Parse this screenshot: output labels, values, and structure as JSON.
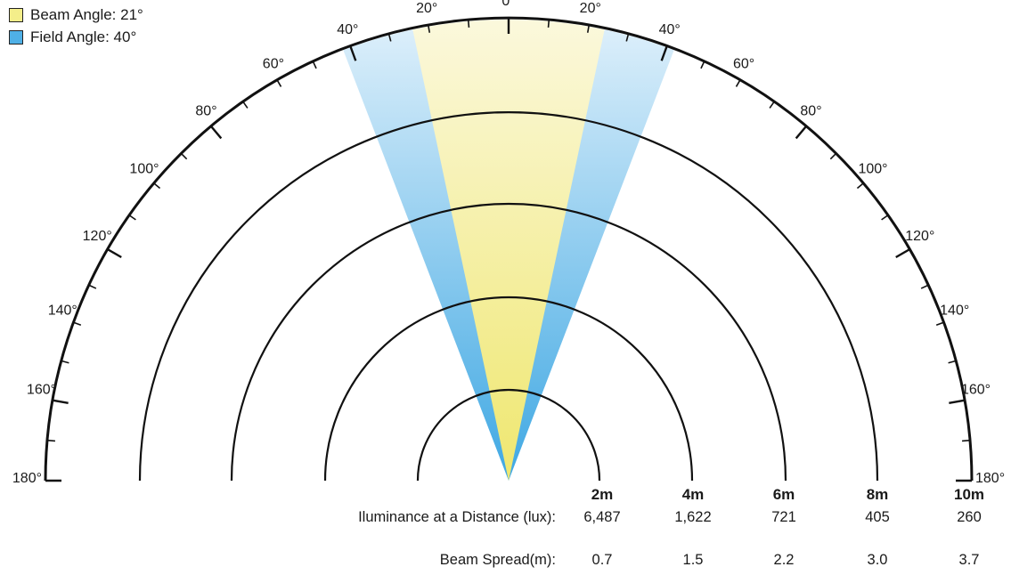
{
  "legend": {
    "beam": {
      "label": "Beam Angle: 21°",
      "color": "#f4ee8a"
    },
    "field": {
      "label": "Field Angle: 40°",
      "color": "#4fb0e6"
    }
  },
  "chart_data": {
    "type": "polar-beam",
    "beam_angle_deg": 21,
    "field_angle_deg": 40,
    "angle_ticks": [
      "0°",
      "20°",
      "40°",
      "60°",
      "80°",
      "100°",
      "120°",
      "140°",
      "160°",
      "180°"
    ],
    "distances": [
      "2m",
      "4m",
      "6m",
      "8m",
      "10m"
    ],
    "series": [
      {
        "name": "Iluminance at a Distance (lux):",
        "values": [
          "6,487",
          "1,622",
          "721",
          "405",
          "260"
        ]
      },
      {
        "name": "Beam Spread(m):",
        "values": [
          "0.7",
          "1.5",
          "2.2",
          "3.0",
          "3.7"
        ]
      }
    ]
  }
}
